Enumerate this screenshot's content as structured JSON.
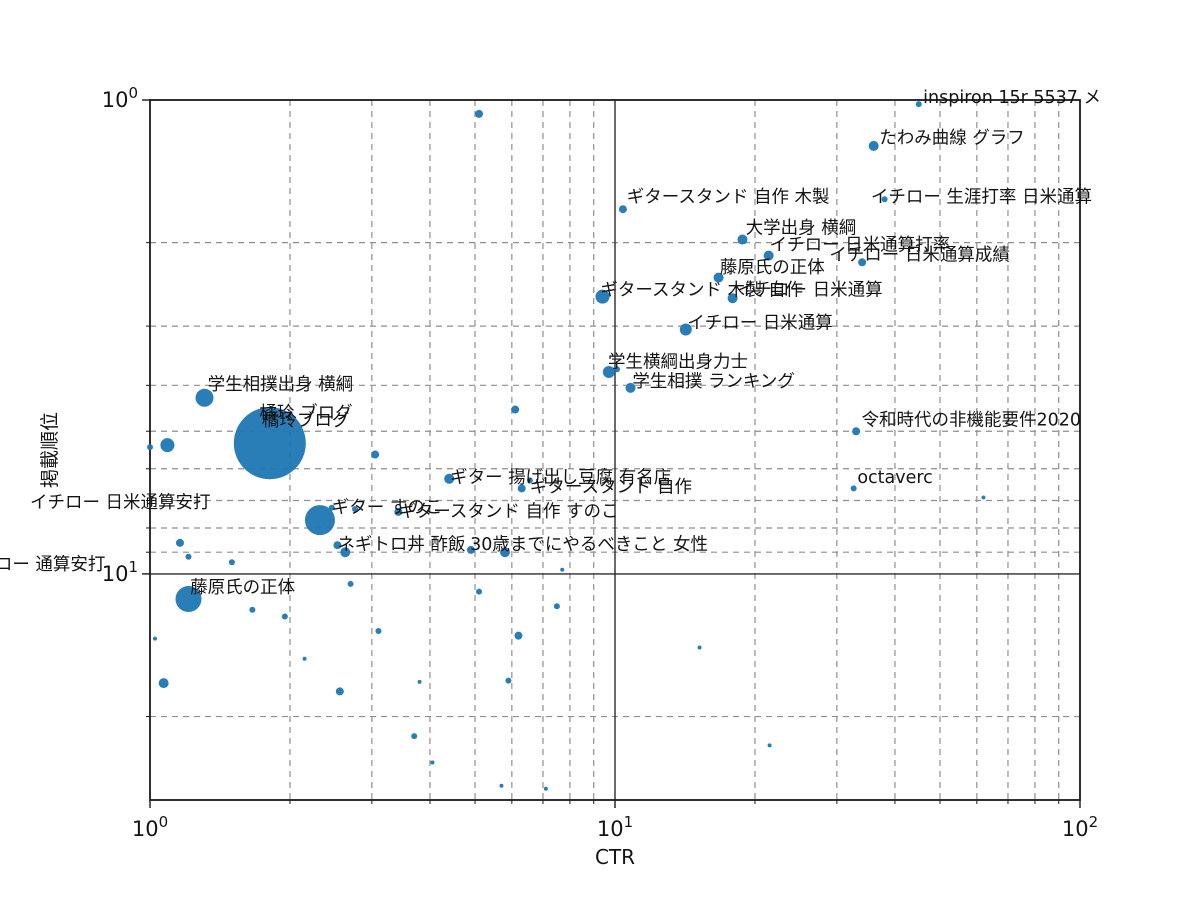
{
  "chart_data": {
    "type": "scatter",
    "subtype": "bubble",
    "title": "",
    "xlabel": "CTR",
    "ylabel": "掲載順位",
    "xscale": "log",
    "yscale": "log",
    "xlim": [
      1,
      100
    ],
    "ylim": [
      1,
      30
    ],
    "y_inverted": true,
    "grid": {
      "x_minor": [
        2,
        3,
        4,
        5,
        6,
        7,
        8,
        9,
        20,
        30,
        40,
        50,
        60,
        70,
        80,
        90
      ],
      "x_major": [
        10
      ],
      "y_minor": [
        2,
        3,
        4,
        5,
        6,
        7,
        8,
        9,
        20
      ],
      "y_major": [
        10
      ]
    },
    "x_ticks": [
      {
        "value": 1,
        "base": "10",
        "exp": "0"
      },
      {
        "value": 10,
        "base": "10",
        "exp": "1"
      },
      {
        "value": 100,
        "base": "10",
        "exp": "2"
      }
    ],
    "y_ticks": [
      {
        "value": 1,
        "base": "10",
        "exp": "0"
      },
      {
        "value": 10,
        "base": "10",
        "exp": "1"
      }
    ],
    "colors": {
      "bubble": "#1f77b4",
      "grid_minor": "#8f8f8f",
      "grid_major": "#2b2b2b",
      "spine": "#1a1a1a",
      "text": "#141414"
    },
    "bubbles": [
      [
        1.81,
        5.3,
        36
      ],
      [
        2.32,
        7.7,
        15
      ],
      [
        1.21,
        11.3,
        13
      ],
      [
        1.31,
        4.25,
        9
      ],
      [
        1.09,
        5.35,
        7
      ],
      [
        1.0,
        5.4,
        3
      ],
      [
        9.4,
        2.6,
        7
      ],
      [
        14.2,
        3.05,
        6
      ],
      [
        9.7,
        3.75,
        6
      ],
      [
        10.1,
        3.7,
        3
      ],
      [
        10.8,
        4.05,
        5
      ],
      [
        17.9,
        2.62,
        5
      ],
      [
        18.8,
        1.97,
        5
      ],
      [
        21.4,
        2.13,
        5
      ],
      [
        16.7,
        2.37,
        5
      ],
      [
        36,
        1.25,
        5
      ],
      [
        34,
        2.2,
        4
      ],
      [
        10.4,
        1.7,
        4
      ],
      [
        33,
        5.0,
        4
      ],
      [
        32.6,
        6.6,
        3
      ],
      [
        45,
        1.02,
        3
      ],
      [
        38,
        1.62,
        3
      ],
      [
        1.07,
        17,
        5
      ],
      [
        1.16,
        8.6,
        4
      ],
      [
        1.21,
        9.2,
        3
      ],
      [
        1.5,
        9.45,
        3
      ],
      [
        1.66,
        11.9,
        3
      ],
      [
        1.95,
        12.3,
        3
      ],
      [
        2.63,
        9.0,
        5
      ],
      [
        2.7,
        10.5,
        3
      ],
      [
        3.1,
        13.2,
        3
      ],
      [
        2.56,
        17.7,
        4
      ],
      [
        3.7,
        22,
        3
      ],
      [
        4.05,
        25,
        2
      ],
      [
        3.05,
        5.6,
        4
      ],
      [
        6.1,
        4.5,
        4
      ],
      [
        4.4,
        6.3,
        5
      ],
      [
        6.56,
        6.35,
        3
      ],
      [
        6.3,
        6.6,
        4
      ],
      [
        5.8,
        9.0,
        5
      ],
      [
        5.1,
        10.9,
        3
      ],
      [
        6.2,
        13.5,
        4
      ],
      [
        5.9,
        16.8,
        3
      ],
      [
        7.5,
        11.7,
        3
      ],
      [
        5.1,
        1.07,
        4
      ],
      [
        15.2,
        14.3,
        2
      ],
      [
        21.5,
        23,
        2
      ],
      [
        62,
        6.9,
        2
      ],
      [
        5.7,
        28,
        2
      ],
      [
        7.1,
        28.4,
        2
      ],
      [
        2.15,
        15.1,
        2
      ],
      [
        2.76,
        7.3,
        3
      ],
      [
        3.42,
        7.4,
        4
      ],
      [
        2.46,
        7.25,
        3
      ],
      [
        2.53,
        8.7,
        4
      ],
      [
        4.9,
        8.9,
        4
      ],
      [
        1.025,
        13.7,
        2
      ],
      [
        3.8,
        16.9,
        2
      ],
      [
        7.7,
        9.8,
        2
      ]
    ],
    "labels": [
      {
        "t": "inspiron 15r 5537 メ",
        "x": 46,
        "y": 0.985
      },
      {
        "t": "たわみ曲線 グラフ",
        "x": 37,
        "y": 1.2
      },
      {
        "t": "ギタースタンド 自作 木製",
        "x": 10.6,
        "y": 1.6
      },
      {
        "t": "イチロー 生涯打率 日米通算",
        "x": 35.5,
        "y": 1.6
      },
      {
        "t": "大学出身 横綱",
        "x": 19.1,
        "y": 1.86
      },
      {
        "t": "イチロー 日米通算打率",
        "x": 21.5,
        "y": 2.02
      },
      {
        "t": "イチロー 日米通算成績",
        "x": 28.9,
        "y": 2.12
      },
      {
        "t": "藤原氏の正体",
        "x": 16.8,
        "y": 2.25
      },
      {
        "t": "ギタースタンド 木製 自作",
        "x": 9.3,
        "y": 2.51
      },
      {
        "t": "イチロー 日米通算",
        "x": 18.3,
        "y": 2.51
      },
      {
        "t": "イチロー 日米通算",
        "x": 14.3,
        "y": 2.95
      },
      {
        "t": "学生横綱出身力士",
        "x": 9.66,
        "y": 3.56
      },
      {
        "t": "学生相撲 ランキング",
        "x": 10.9,
        "y": 3.92
      },
      {
        "t": "学生相撲出身 横綱",
        "x": 1.33,
        "y": 3.97
      },
      {
        "t": "橘玲 ブログ",
        "x": 1.72,
        "y": 4.56
      },
      {
        "t": "橘玲ブログ",
        "x": 1.74,
        "y": 4.74
      },
      {
        "t": "令和時代の非機能要件2020",
        "x": 33.9,
        "y": 4.72
      },
      {
        "t": "ギター 揚げ出し豆腐 有名店",
        "x": 4.42,
        "y": 6.25
      },
      {
        "t": "ギタースタンド 自作",
        "x": 6.56,
        "y": 6.54
      },
      {
        "t": "octaverc",
        "x": 33.2,
        "y": 6.25
      },
      {
        "t": "ギター すのこ",
        "x": 2.46,
        "y": 7.23
      },
      {
        "t": "ギタースタンド 自作 すのこ",
        "x": 3.42,
        "y": 7.37
      },
      {
        "t": "イチロー 日米通算安打",
        "x": 0.552,
        "y": 7.05
      },
      {
        "t": "ネギトロ丼 酢飯",
        "x": 2.53,
        "y": 8.65
      },
      {
        "t": "30歳までにやるべきこと 女性",
        "x": 4.88,
        "y": 8.65
      },
      {
        "t": "イチロー 通算安打",
        "x": 0.39,
        "y": 9.52
      },
      {
        "t": "藤原氏の正体",
        "x": 1.22,
        "y": 10.65
      }
    ]
  }
}
